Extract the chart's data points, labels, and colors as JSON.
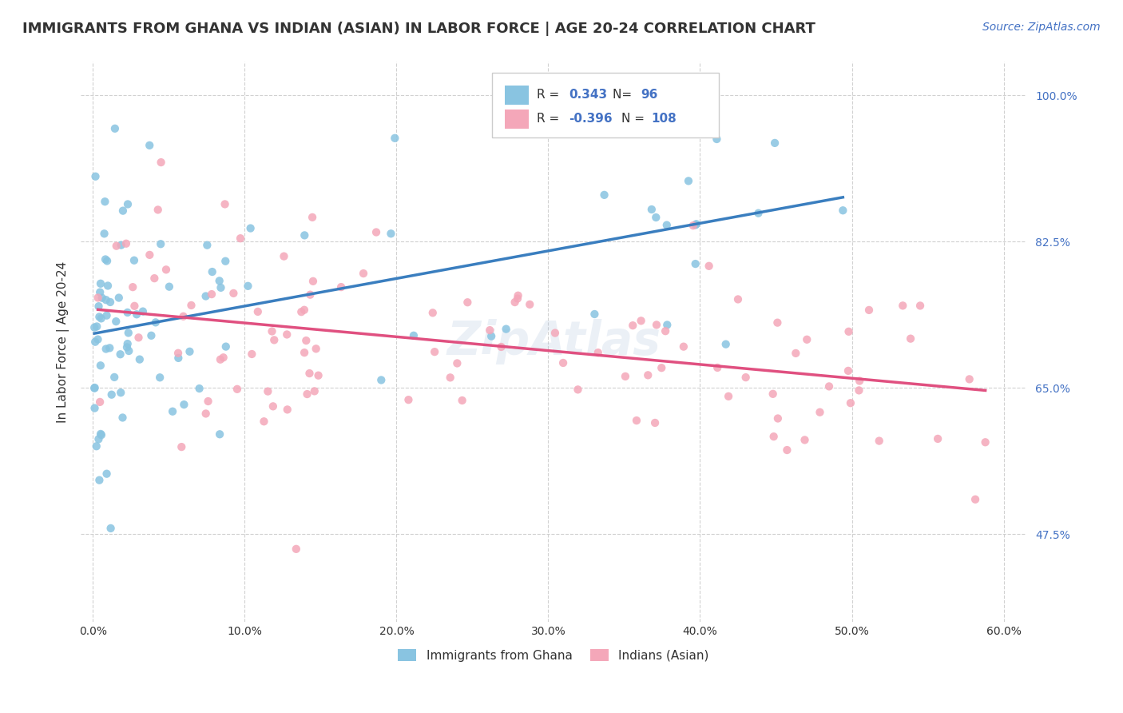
{
  "title": "IMMIGRANTS FROM GHANA VS INDIAN (ASIAN) IN LABOR FORCE | AGE 20-24 CORRELATION CHART",
  "source": "Source: ZipAtlas.com",
  "ylabel": "In Labor Force | Age 20-24",
  "ghana_R": 0.343,
  "ghana_N": 96,
  "indian_R": -0.396,
  "indian_N": 108,
  "ghana_color": "#89c4e1",
  "ghana_line_color": "#3a7ebf",
  "indian_color": "#f4a7b9",
  "indian_line_color": "#e05080",
  "xlim": [
    0.0,
    0.6
  ],
  "ylim": [
    0.37,
    1.04
  ],
  "xticklabels": [
    "0.0%",
    "10.0%",
    "20.0%",
    "30.0%",
    "40.0%",
    "50.0%",
    "60.0%"
  ],
  "ytick_right_labels": [
    "47.5%",
    "65.0%",
    "82.5%",
    "100.0%"
  ],
  "ytick_right_values": [
    0.475,
    0.65,
    0.825,
    1.0
  ],
  "title_fontsize": 13,
  "label_fontsize": 11,
  "tick_fontsize": 10,
  "bg_color": "#ffffff",
  "grid_color": "#cccccc",
  "title_color": "#333333",
  "source_color": "#4472c4",
  "right_tick_color": "#4472c4",
  "legend_text_color_value": "#4472c4"
}
